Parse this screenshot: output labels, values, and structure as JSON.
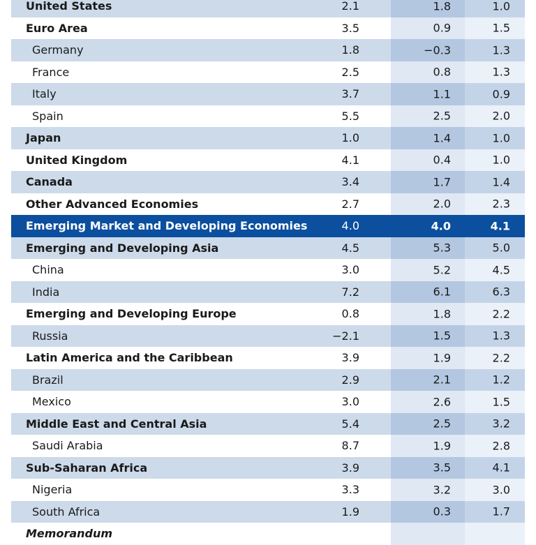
{
  "rows": [
    {
      "label": "United States",
      "v1": "2.1",
      "v2": "1.8",
      "v3": "1.0",
      "style": "shaded",
      "bold": true,
      "indent": false
    },
    {
      "label": "Euro Area",
      "v1": "3.5",
      "v2": "0.9",
      "v3": "1.5",
      "style": "plain",
      "bold": true,
      "indent": false
    },
    {
      "label": "Germany",
      "v1": "1.8",
      "v2": "-0.3",
      "v3": "1.3",
      "style": "shaded",
      "bold": false,
      "indent": true
    },
    {
      "label": "France",
      "v1": "2.5",
      "v2": "0.8",
      "v3": "1.3",
      "style": "plain",
      "bold": false,
      "indent": true
    },
    {
      "label": "Italy",
      "v1": "3.7",
      "v2": "1.1",
      "v3": "0.9",
      "style": "shaded",
      "bold": false,
      "indent": true
    },
    {
      "label": "Spain",
      "v1": "5.5",
      "v2": "2.5",
      "v3": "2.0",
      "style": "plain",
      "bold": false,
      "indent": true
    },
    {
      "label": "Japan",
      "v1": "1.0",
      "v2": "1.4",
      "v3": "1.0",
      "style": "shaded",
      "bold": true,
      "indent": false
    },
    {
      "label": "United Kingdom",
      "v1": "4.1",
      "v2": "0.4",
      "v3": "1.0",
      "style": "plain",
      "bold": true,
      "indent": false
    },
    {
      "label": "Canada",
      "v1": "3.4",
      "v2": "1.7",
      "v3": "1.4",
      "style": "shaded",
      "bold": true,
      "indent": false
    },
    {
      "label": "Other Advanced Economies",
      "v1": "2.7",
      "v2": "2.0",
      "v3": "2.3",
      "style": "plain",
      "bold": true,
      "indent": false
    },
    {
      "label": "Emerging Market and Developing Economies",
      "v1": "4.0",
      "v2": "4.0",
      "v3": "4.1",
      "style": "highlight",
      "bold": true,
      "indent": false
    },
    {
      "label": "Emerging and Developing Asia",
      "v1": "4.5",
      "v2": "5.3",
      "v3": "5.0",
      "style": "shaded",
      "bold": true,
      "indent": false
    },
    {
      "label": "China",
      "v1": "3.0",
      "v2": "5.2",
      "v3": "4.5",
      "style": "plain",
      "bold": false,
      "indent": true
    },
    {
      "label": "India",
      "v1": "7.2",
      "v2": "6.1",
      "v3": "6.3",
      "style": "shaded",
      "bold": false,
      "indent": true
    },
    {
      "label": "Emerging and Developing Europe",
      "v1": "0.8",
      "v2": "1.8",
      "v3": "2.2",
      "style": "plain",
      "bold": true,
      "indent": false
    },
    {
      "label": "Russia",
      "v1": "-2.1",
      "v2": "1.5",
      "v3": "1.3",
      "style": "shaded",
      "bold": false,
      "indent": true
    },
    {
      "label": "Latin America and the Caribbean",
      "v1": "3.9",
      "v2": "1.9",
      "v3": "2.2",
      "style": "plain",
      "bold": true,
      "indent": false
    },
    {
      "label": "Brazil",
      "v1": "2.9",
      "v2": "2.1",
      "v3": "1.2",
      "style": "shaded",
      "bold": false,
      "indent": true
    },
    {
      "label": "Mexico",
      "v1": "3.0",
      "v2": "2.6",
      "v3": "1.5",
      "style": "plain",
      "bold": false,
      "indent": true
    },
    {
      "label": "Middle East and Central Asia",
      "v1": "5.4",
      "v2": "2.5",
      "v3": "3.2",
      "style": "shaded",
      "bold": true,
      "indent": false
    },
    {
      "label": "Saudi Arabia",
      "v1": "8.7",
      "v2": "1.9",
      "v3": "2.8",
      "style": "plain",
      "bold": false,
      "indent": true
    },
    {
      "label": "Sub-Saharan Africa",
      "v1": "3.9",
      "v2": "3.5",
      "v3": "4.1",
      "style": "shaded",
      "bold": true,
      "indent": false
    },
    {
      "label": "Nigeria",
      "v1": "3.3",
      "v2": "3.2",
      "v3": "3.0",
      "style": "plain",
      "bold": false,
      "indent": true
    },
    {
      "label": "South Africa",
      "v1": "1.9",
      "v2": "0.3",
      "v3": "1.7",
      "style": "shaded",
      "bold": false,
      "indent": true
    }
  ],
  "memo": {
    "label": "Memorandum"
  },
  "colors": {
    "row_shaded": "#ccdaea",
    "highlight": "#0b4f9e"
  }
}
